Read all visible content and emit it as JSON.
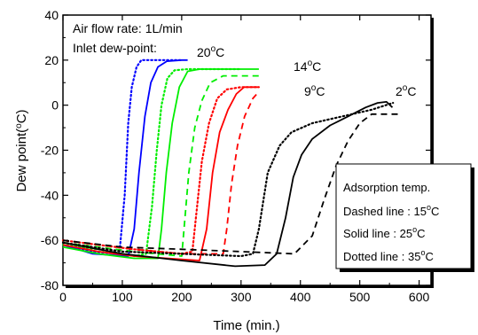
{
  "chart_data": {
    "type": "line",
    "xlabel": "Time (min.)",
    "ylabel": "Dew point(",
    "ylabel_unit": "oC)",
    "xlim": [
      0,
      620
    ],
    "ylim": [
      -80,
      40
    ],
    "x_ticks": [
      "0",
      "100",
      "200",
      "300",
      "400",
      "500",
      "600"
    ],
    "y_ticks": [
      "40",
      "20",
      "0",
      "-20",
      "-40",
      "-60",
      "-80"
    ],
    "x_tick_values": [
      0,
      100,
      200,
      300,
      400,
      500,
      600
    ],
    "y_tick_values": [
      40,
      20,
      0,
      -20,
      -40,
      -60,
      -80
    ],
    "grid": false,
    "annotations": {
      "flow_rate": "Air flow rate: 1L/min",
      "inlet_label": "Inlet dew-point:",
      "inlet_20": "20",
      "inlet_14": "14",
      "inlet_9": "9",
      "inlet_2": "2",
      "degree_unit": "oC"
    },
    "legend": {
      "placement": "bottom-right",
      "title": "Adsorption temp.",
      "dashed_label": "Dashed line : 15",
      "solid_label": "Solid line : 25",
      "dotted_label": "Dotted line : 35",
      "degree_unit": "oC"
    },
    "series": [
      {
        "inlet": 20,
        "ads_temp": 35,
        "color": "#0000ff",
        "style": "dotted",
        "points": [
          [
            0,
            -62
          ],
          [
            50,
            -65
          ],
          [
            95,
            -66
          ],
          [
            104,
            -40
          ],
          [
            110,
            -8
          ],
          [
            116,
            8
          ],
          [
            124,
            17
          ],
          [
            132,
            20
          ],
          [
            200,
            20
          ]
        ]
      },
      {
        "inlet": 20,
        "ads_temp": 25,
        "color": "#0000ff",
        "style": "solid",
        "points": [
          [
            0,
            -62
          ],
          [
            50,
            -66
          ],
          [
            110,
            -67
          ],
          [
            120,
            -55
          ],
          [
            128,
            -30
          ],
          [
            138,
            -5
          ],
          [
            148,
            10
          ],
          [
            160,
            17
          ],
          [
            175,
            19.5
          ],
          [
            200,
            20
          ],
          [
            210,
            20
          ]
        ]
      },
      {
        "inlet": 14,
        "ads_temp": 35,
        "color": "#00ee00",
        "style": "dotted",
        "points": [
          [
            0,
            -62
          ],
          [
            60,
            -64
          ],
          [
            120,
            -67
          ],
          [
            140,
            -66
          ],
          [
            150,
            -45
          ],
          [
            158,
            -20
          ],
          [
            166,
            0
          ],
          [
            176,
            12
          ],
          [
            188,
            15.5
          ],
          [
            210,
            16
          ],
          [
            300,
            16
          ]
        ]
      },
      {
        "inlet": 14,
        "ads_temp": 25,
        "color": "#00ee00",
        "style": "solid",
        "points": [
          [
            0,
            -63
          ],
          [
            60,
            -66
          ],
          [
            120,
            -68
          ],
          [
            160,
            -68
          ],
          [
            166,
            -55
          ],
          [
            174,
            -30
          ],
          [
            184,
            -8
          ],
          [
            196,
            8
          ],
          [
            210,
            15
          ],
          [
            230,
            16
          ],
          [
            330,
            16
          ]
        ]
      },
      {
        "inlet": 14,
        "ads_temp": 15,
        "color": "#00ee00",
        "style": "dashed",
        "points": [
          [
            0,
            -61
          ],
          [
            60,
            -63
          ],
          [
            120,
            -65
          ],
          [
            200,
            -67
          ],
          [
            204,
            -55
          ],
          [
            212,
            -30
          ],
          [
            222,
            -10
          ],
          [
            234,
            2
          ],
          [
            248,
            10
          ],
          [
            270,
            13
          ],
          [
            330,
            13
          ]
        ]
      },
      {
        "inlet": 9,
        "ads_temp": 35,
        "color": "#ff0000",
        "style": "dotted",
        "points": [
          [
            0,
            -60
          ],
          [
            60,
            -62
          ],
          [
            120,
            -64
          ],
          [
            200,
            -66
          ],
          [
            218,
            -65
          ],
          [
            224,
            -50
          ],
          [
            234,
            -25
          ],
          [
            246,
            -8
          ],
          [
            260,
            3
          ],
          [
            276,
            7
          ],
          [
            300,
            8
          ],
          [
            330,
            8
          ]
        ]
      },
      {
        "inlet": 9,
        "ads_temp": 25,
        "color": "#ff0000",
        "style": "solid",
        "points": [
          [
            0,
            -62
          ],
          [
            60,
            -65
          ],
          [
            120,
            -67
          ],
          [
            230,
            -69
          ],
          [
            242,
            -55
          ],
          [
            252,
            -30
          ],
          [
            264,
            -12
          ],
          [
            278,
            -2
          ],
          [
            292,
            5
          ],
          [
            305,
            8
          ],
          [
            330,
            8
          ]
        ]
      },
      {
        "inlet": 9,
        "ads_temp": 15,
        "color": "#ff0000",
        "style": "dashed",
        "points": [
          [
            0,
            -60
          ],
          [
            60,
            -62
          ],
          [
            120,
            -64
          ],
          [
            200,
            -66
          ],
          [
            270,
            -66
          ],
          [
            276,
            -55
          ],
          [
            284,
            -35
          ],
          [
            294,
            -18
          ],
          [
            306,
            -5
          ],
          [
            320,
            3
          ],
          [
            330,
            6
          ]
        ]
      },
      {
        "inlet": 2,
        "ads_temp": 35,
        "color": "#000000",
        "style": "dotted",
        "points": [
          [
            0,
            -61
          ],
          [
            100,
            -65
          ],
          [
            200,
            -66
          ],
          [
            300,
            -67
          ],
          [
            320,
            -66
          ],
          [
            330,
            -55
          ],
          [
            345,
            -30
          ],
          [
            365,
            -18
          ],
          [
            385,
            -12
          ],
          [
            420,
            -8
          ],
          [
            470,
            -5
          ],
          [
            520,
            -2
          ],
          [
            556,
            1
          ]
        ]
      },
      {
        "inlet": 2,
        "ads_temp": 25,
        "color": "#000000",
        "style": "solid",
        "points": [
          [
            0,
            -61
          ],
          [
            100,
            -66
          ],
          [
            200,
            -69
          ],
          [
            290,
            -71.5
          ],
          [
            340,
            -71
          ],
          [
            360,
            -66
          ],
          [
            375,
            -50
          ],
          [
            388,
            -32
          ],
          [
            402,
            -22
          ],
          [
            420,
            -15
          ],
          [
            450,
            -9
          ],
          [
            480,
            -5
          ],
          [
            510,
            -1
          ],
          [
            530,
            1
          ],
          [
            545,
            1.5
          ],
          [
            555,
            -1
          ]
        ]
      },
      {
        "inlet": 2,
        "ads_temp": 15,
        "color": "#000000",
        "style": "dashed",
        "points": [
          [
            0,
            -60
          ],
          [
            100,
            -63
          ],
          [
            200,
            -64
          ],
          [
            300,
            -65
          ],
          [
            390,
            -66
          ],
          [
            420,
            -58
          ],
          [
            440,
            -42
          ],
          [
            460,
            -27
          ],
          [
            480,
            -16
          ],
          [
            500,
            -8
          ],
          [
            520,
            -4
          ],
          [
            540,
            -4
          ],
          [
            565,
            -4
          ]
        ]
      }
    ]
  }
}
